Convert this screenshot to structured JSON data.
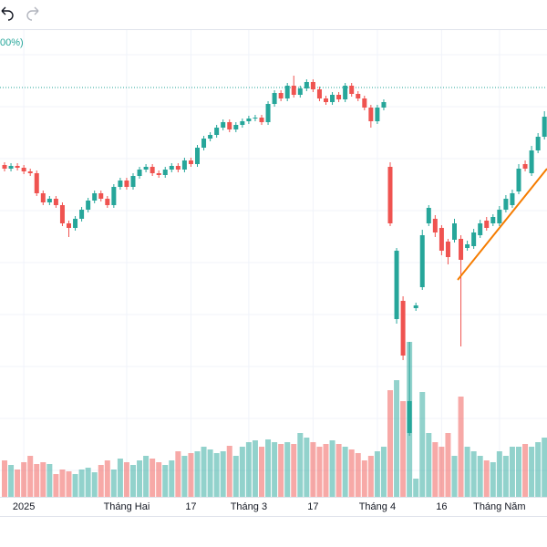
{
  "chart_data": {
    "type": "candlestick",
    "annotation": "00%)",
    "categories": [
      null,
      null,
      null,
      "2025",
      null,
      null,
      null,
      null,
      null,
      null,
      null,
      null,
      null,
      null,
      null,
      null,
      null,
      null,
      null,
      "Tháng Hai",
      null,
      null,
      null,
      null,
      null,
      null,
      null,
      null,
      null,
      "17",
      null,
      null,
      null,
      null,
      null,
      null,
      null,
      null,
      "Tháng 3",
      null,
      null,
      null,
      null,
      null,
      null,
      null,
      null,
      null,
      "17",
      null,
      null,
      null,
      null,
      null,
      null,
      null,
      null,
      null,
      "Tháng 4",
      null,
      null,
      null,
      null,
      null,
      null,
      null,
      null,
      null,
      "16",
      null,
      null,
      null,
      null,
      null,
      null,
      null,
      null,
      "Tháng Năm",
      null,
      null,
      null,
      null,
      null,
      null,
      null
    ],
    "open": [
      364,
      360,
      363,
      361,
      357,
      355,
      333,
      323,
      327,
      320,
      300,
      295,
      305,
      315,
      325,
      333,
      327,
      320,
      340,
      347,
      340,
      352,
      359,
      362,
      355,
      353,
      359,
      363,
      359,
      369,
      365,
      383,
      393,
      397,
      405,
      411,
      403,
      408,
      412,
      415,
      416,
      411,
      431,
      443,
      437,
      451,
      441,
      448,
      455,
      447,
      437,
      433,
      441,
      436,
      451,
      442,
      437,
      427,
      412,
      427,
      362,
      195,
      215,
      70,
      207,
      230,
      300,
      305,
      295,
      280,
      282,
      283,
      273,
      275,
      287,
      303,
      300,
      300,
      315,
      320,
      335,
      365,
      355,
      380,
      395
    ],
    "high": [
      367,
      366,
      366,
      364,
      360,
      358,
      336,
      330,
      330,
      323,
      303,
      308,
      318,
      328,
      336,
      336,
      330,
      343,
      350,
      350,
      355,
      362,
      365,
      365,
      358,
      362,
      366,
      366,
      372,
      372,
      386,
      396,
      400,
      408,
      414,
      414,
      411,
      415,
      418,
      419,
      419,
      434,
      446,
      446,
      454,
      462,
      451,
      458,
      458,
      450,
      440,
      444,
      444,
      454,
      454,
      445,
      440,
      430,
      430,
      436,
      367,
      273,
      220,
      170,
      213,
      293,
      320,
      309,
      298,
      283,
      305,
      287,
      281,
      294,
      304,
      307,
      310,
      319,
      331,
      337,
      365,
      369,
      385,
      399,
      423
    ],
    "low": [
      357,
      357,
      358,
      354,
      352,
      330,
      320,
      320,
      317,
      297,
      285,
      292,
      302,
      312,
      322,
      324,
      317,
      317,
      337,
      337,
      337,
      349,
      356,
      352,
      350,
      350,
      356,
      356,
      356,
      362,
      362,
      380,
      390,
      394,
      402,
      400,
      400,
      405,
      409,
      412,
      408,
      408,
      428,
      434,
      434,
      438,
      438,
      445,
      444,
      434,
      430,
      430,
      433,
      433,
      439,
      434,
      424,
      405,
      409,
      424,
      297,
      190,
      150,
      67,
      204,
      227,
      297,
      285,
      265,
      255,
      279,
      165,
      270,
      272,
      284,
      292,
      297,
      297,
      312,
      317,
      332,
      357,
      352,
      377,
      392
    ],
    "close": [
      360,
      363,
      361,
      357,
      355,
      333,
      323,
      327,
      320,
      300,
      295,
      305,
      315,
      325,
      333,
      327,
      320,
      340,
      347,
      340,
      352,
      359,
      362,
      355,
      353,
      359,
      363,
      359,
      369,
      365,
      383,
      393,
      397,
      405,
      411,
      403,
      408,
      412,
      415,
      416,
      411,
      431,
      443,
      437,
      451,
      441,
      448,
      455,
      447,
      437,
      433,
      441,
      436,
      451,
      442,
      437,
      427,
      412,
      427,
      433,
      300,
      270,
      155,
      105,
      210,
      287,
      317,
      290,
      270,
      263,
      300,
      260,
      277,
      290,
      300,
      295,
      307,
      315,
      327,
      333,
      360,
      360,
      380,
      395,
      417
    ],
    "volume": [
      40,
      35,
      30,
      38,
      45,
      36,
      38,
      36,
      25,
      30,
      28,
      25,
      30,
      32,
      27,
      35,
      40,
      30,
      42,
      38,
      35,
      40,
      45,
      42,
      38,
      35,
      40,
      50,
      45,
      48,
      50,
      55,
      52,
      48,
      50,
      56,
      45,
      55,
      60,
      62,
      55,
      63,
      60,
      58,
      60,
      58,
      70,
      65,
      60,
      55,
      58,
      62,
      58,
      55,
      52,
      48,
      40,
      45,
      50,
      55,
      117,
      128,
      105,
      170,
      20,
      115,
      70,
      60,
      55,
      70,
      45,
      110,
      55,
      50,
      45,
      40,
      38,
      50,
      45,
      55,
      55,
      58,
      55,
      60,
      65
    ],
    "up_color": "#26a69a",
    "down_color": "#ef5350",
    "ylim": [
      0,
      515
    ],
    "y2lim": [
      0,
      515
    ],
    "reference_line": 449,
    "trendline": {
      "x": [
        70.5,
        84.4
      ],
      "values": [
        238,
        360
      ],
      "color": "#f57c00"
    }
  }
}
